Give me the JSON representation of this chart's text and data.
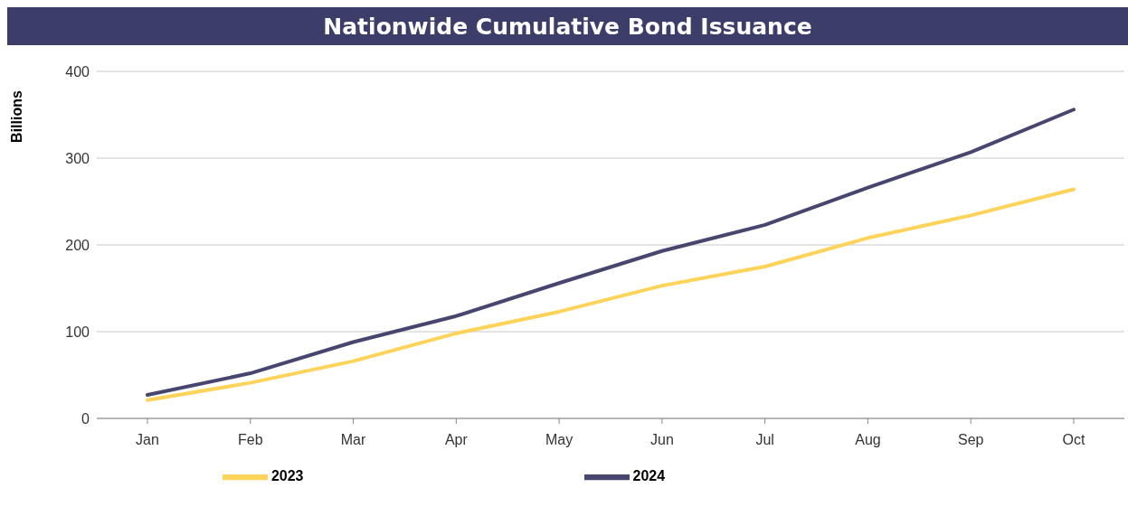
{
  "chart_data": {
    "type": "line",
    "title": "Nationwide Cumulative Bond Issuance",
    "ylabel": "Billions",
    "categories": [
      "Jan",
      "Feb",
      "Mar",
      "Apr",
      "May",
      "Jun",
      "Jul",
      "Aug",
      "Sep",
      "Oct"
    ],
    "series": [
      {
        "name": "2023",
        "color": "#fdd35a",
        "values": [
          21,
          41,
          66,
          98,
          123,
          153,
          175,
          208,
          234,
          264
        ]
      },
      {
        "name": "2024",
        "color": "#46466e",
        "values": [
          27,
          52,
          88,
          118,
          156,
          193,
          223,
          266,
          307,
          356
        ]
      }
    ],
    "ylim": [
      0,
      400
    ],
    "yticks": [
      0,
      100,
      200,
      300,
      400
    ],
    "grid": "y",
    "legend": "bottom",
    "marker": "none",
    "line_style": "solid"
  }
}
